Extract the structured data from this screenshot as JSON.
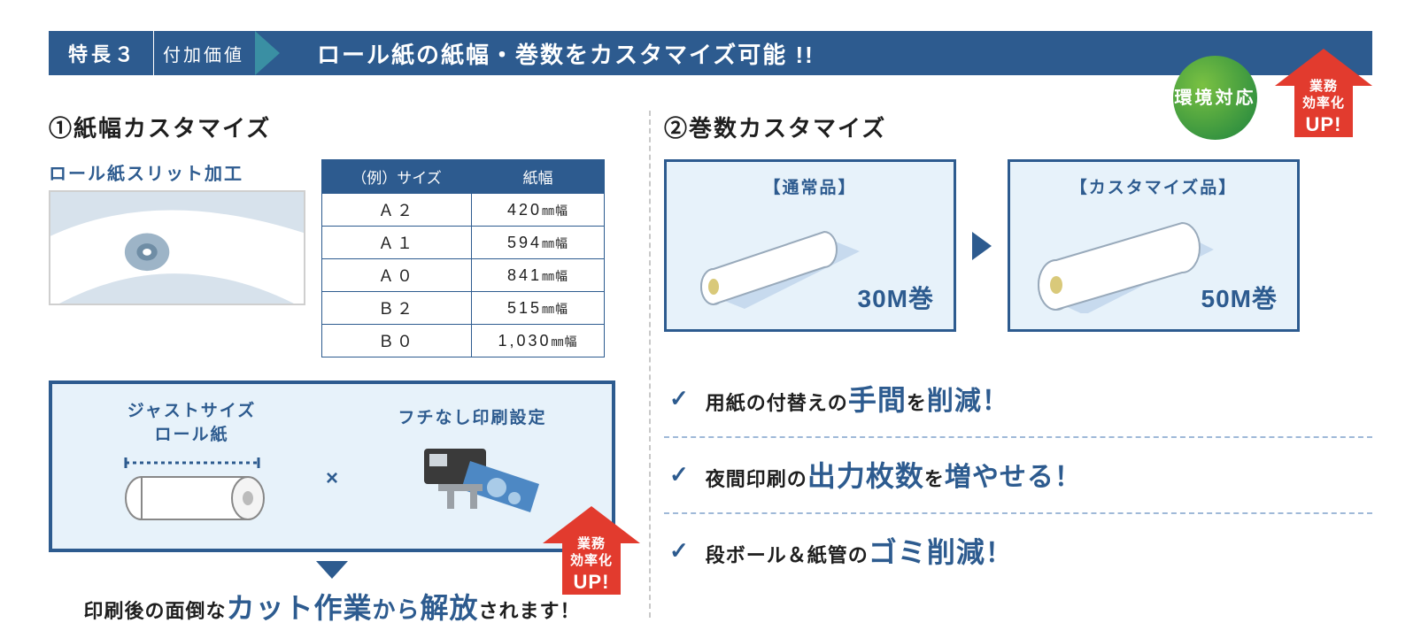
{
  "colors": {
    "primary": "#2d5b8f",
    "lightblue_bg": "#e7f2fa",
    "dash": "#9fb9d8",
    "red": "#e23b2e",
    "green_light": "#7ac142",
    "green_dark": "#2f8f3f",
    "grey_border": "#cfcfcf",
    "grey_dash": "#c9c9c9"
  },
  "header": {
    "badge": "特長３",
    "subtitle": "付加価値",
    "title": "ロール紙の紙幅・巻数をカスタマイズ可能 !!"
  },
  "top_badges": {
    "green": "環境\n対応",
    "red_line1": "業務",
    "red_line2": "効率化",
    "red_line3": "UP!"
  },
  "left": {
    "title": "①紙幅カスタマイズ",
    "slit_label": "ロール紙スリット加工",
    "table": {
      "type": "table",
      "columns": [
        "（例）サイズ",
        "紙幅"
      ],
      "rows": [
        [
          "Ａ２",
          "420",
          "㎜幅"
        ],
        [
          "Ａ１",
          "594",
          "㎜幅"
        ],
        [
          "Ａ０",
          "841",
          "㎜幅"
        ],
        [
          "Ｂ２",
          "515",
          "㎜幅"
        ],
        [
          "Ｂ０",
          "1,030",
          "㎜幅"
        ]
      ],
      "header_bg": "#2d5b8f",
      "border_color": "#2d5b8f",
      "header_fontsize": 17,
      "cell_fontsize": 18
    },
    "card": {
      "left_title": "ジャストサイズ\nロール紙",
      "times": "×",
      "right_title": "フチなし印刷設定",
      "badge_line1": "業務",
      "badge_line2": "効率化",
      "badge_line3": "UP!"
    },
    "tagline": {
      "pre": "印刷後の面倒な",
      "em1": "カット作業",
      "mid": "から",
      "em2": "解放",
      "post": "されます！"
    }
  },
  "right": {
    "title": "②巻数カスタマイズ",
    "card_normal": {
      "title": "【通常品】",
      "label": "30M巻"
    },
    "card_custom": {
      "title": "【カスタマイズ品】",
      "label": "50M巻"
    },
    "benefits": [
      {
        "pre": "用紙の付替えの",
        "em": "手間",
        "mid": "を",
        "tail": "削減！"
      },
      {
        "pre": "夜間印刷の",
        "em": "出力枚数",
        "mid": "を",
        "tail": "増やせる！"
      },
      {
        "pre": "段ボール＆紙管の",
        "em": "ゴミ削減",
        "mid": "",
        "tail": "！"
      }
    ]
  }
}
